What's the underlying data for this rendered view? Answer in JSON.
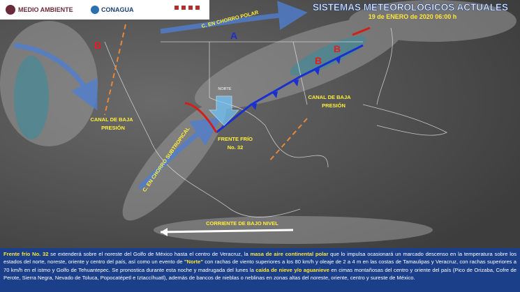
{
  "header": {
    "logos": [
      "MEDIO AMBIENTE",
      "CONAGUA"
    ],
    "title": "SISTEMAS METEOROLÓGICOS ACTUALES",
    "date": "19 de ENERO de 2020 06:00 h"
  },
  "map": {
    "labels": {
      "polar_jet": "C. EN CHORRO POLAR",
      "subtropical_jet": "C. EN CHORRO SUBTROPICAL",
      "high": "A",
      "low": "B",
      "norte": "NORTE",
      "low_level_current": "CORRIENTE DE BAJO NIVEL"
    },
    "trough_lines": [
      "CANAL DE BAJA",
      "PRESIÓN"
    ],
    "front_lines": [
      "FRENTE FRÍO",
      "No. 32"
    ]
  },
  "bulletin": {
    "segments": [
      {
        "text": "Frente frío No. 32",
        "highlight": true
      },
      {
        "text": " se extenderá sobre el noreste del Golfo de México hasta el centro de Veracruz, la ",
        "highlight": false
      },
      {
        "text": "masa de aire continental polar",
        "highlight": true
      },
      {
        "text": " que lo impulsa ocasionará un marcado descenso en la temperatura sobre los estados del norte, noreste, oriente y centro del país, así como un evento de ",
        "highlight": false
      },
      {
        "text": "\"Norte\"",
        "highlight": true
      },
      {
        "text": " con rachas de viento superiores a los 80 km/h y oleaje de 2 a 4 m en las costas de Tamaulipas y Veracruz, con rachas superiores a 70 km/h en el istmo y Golfo de Tehuantepec. Se pronostica durante esta noche y madrugada del lunes la ",
        "highlight": false
      },
      {
        "text": "caída de nieve y/o aguanieve",
        "highlight": true
      },
      {
        "text": " en cimas montañosas del centro y oriente del país (Pico de Orizaba, Cofre de Perote, Sierra Negra, Nevado de Toluca, Popocatépetl e Iztaccíhuatl), además de bancos de nieblas o neblinas en zonas altas del noreste, oriente, centro y sureste de México.",
        "highlight": false
      }
    ]
  }
}
